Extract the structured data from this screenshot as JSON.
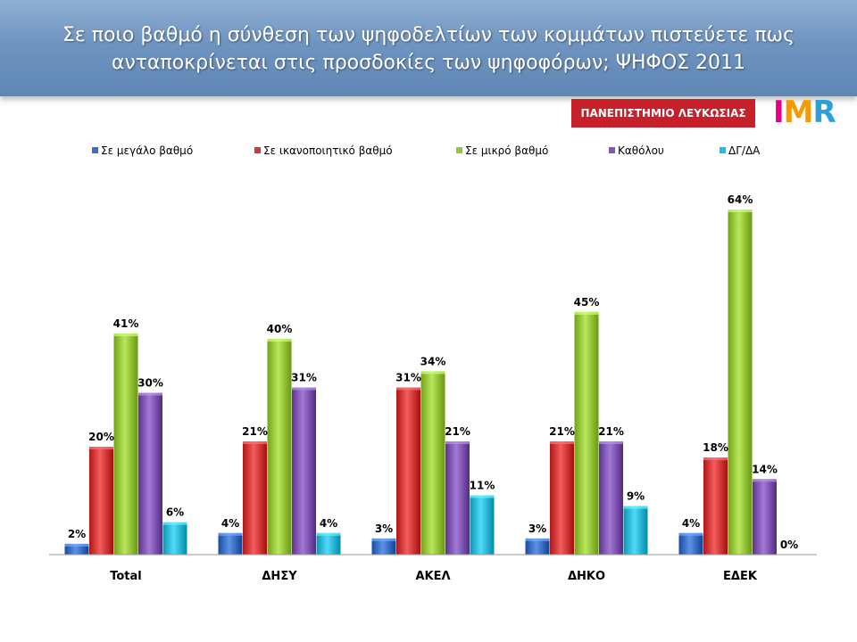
{
  "header": {
    "title_line1": "Σε ποιο βαθμό η σύνθεση των ψηφοδελτίων των κομμάτων πιστεύετε πως",
    "title_line2": "ανταποκρίνεται στις προσδοκίες των ψηφοφόρων; ΨΗΦΟΣ 2011"
  },
  "logos": {
    "university": "ΠΑΝΕΠΙΣΤΗΜΙΟ ΛΕΥΚΩΣΙΑΣ",
    "imr": "IMR"
  },
  "colors": {
    "header_bg": "#6f94c0",
    "university_bg": "#c8202a"
  },
  "chart_data": {
    "type": "bar",
    "categories": [
      "Total",
      "ΔΗΣΥ",
      "ΑΚΕΛ",
      "ΔΗΚΟ",
      "ΕΔΕΚ"
    ],
    "series": [
      {
        "name": "Σε μεγάλο βαθμό",
        "color": "#3a6fc1",
        "values": [
          2,
          4,
          3,
          3,
          4
        ]
      },
      {
        "name": "Σε ικανοποιητικό βαθμό",
        "color": "#d23a3a",
        "values": [
          20,
          21,
          31,
          21,
          18
        ]
      },
      {
        "name": "Σε μικρό βαθμό",
        "color": "#96c43a",
        "values": [
          41,
          40,
          34,
          45,
          64
        ]
      },
      {
        "name": "Καθόλου",
        "color": "#7f57b3",
        "values": [
          30,
          31,
          21,
          21,
          14
        ]
      },
      {
        "name": "ΔΓ/ΔΑ",
        "color": "#2eb7d6",
        "values": [
          6,
          4,
          11,
          9,
          0
        ]
      }
    ],
    "value_suffix": "%",
    "ylim": [
      0,
      70
    ],
    "grid": false,
    "legend_position": "top"
  }
}
